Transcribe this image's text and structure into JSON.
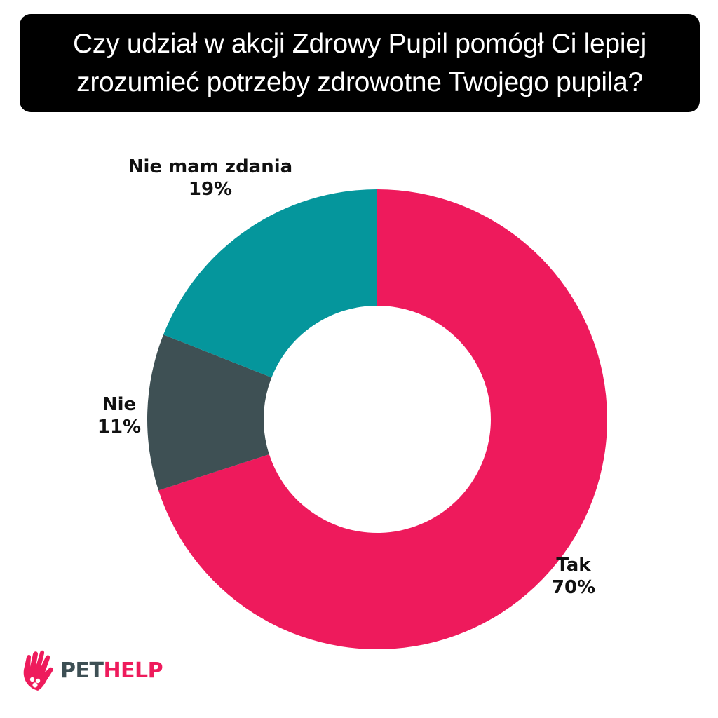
{
  "title": {
    "line1": "Czy udział w akcji Zdrowy Pupil pomógł Ci lepiej",
    "line2": "zrozumieć potrzeby zdrowotne Twojego pupila?"
  },
  "chart_data": {
    "type": "pie",
    "variant": "donut",
    "start": "12 o'clock, clockwise",
    "slices": [
      {
        "label": "Tak",
        "value": 70,
        "value_label": "70%",
        "color": "#ee1a5c"
      },
      {
        "label": "Nie",
        "value": 11,
        "value_label": "11%",
        "color": "#3e5054"
      },
      {
        "label": "Nie mam zdania",
        "value": 19,
        "value_label": "19%",
        "color": "#05969c"
      }
    ]
  },
  "logo": {
    "pet": "PET",
    "help": "HELP",
    "icon": "hand-heart-icon",
    "colors": {
      "pet": "#3d4f54",
      "help": "#ee1b5c"
    }
  }
}
